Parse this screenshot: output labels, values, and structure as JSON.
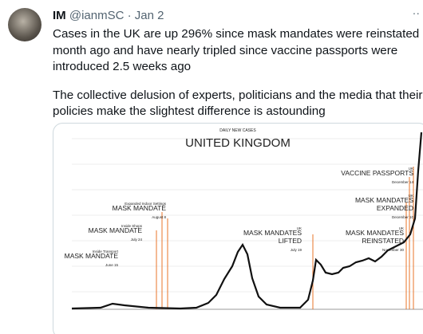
{
  "tweet": {
    "name": "IM",
    "handle": "@ianmSC · Jan 2",
    "more": "··",
    "lines": [
      "Cases in the UK are up 296% since mask mandates were reinstated a",
      "month ago and have nearly tripled since vaccine passports were",
      "introduced 2.5 weeks ago"
    ],
    "lines2": [
      "The collective delusion of experts, politicians and the media that their",
      "policies make the slightest difference is astounding"
    ]
  },
  "image": {
    "subtitle": "DAILY NEW CASES",
    "title": "UNITED KINGDOM",
    "annotations": [
      [
        "Expanded Indoor Settings",
        "MASK MANDATE",
        "August 8"
      ],
      [
        "Inside Shops",
        "MASK MANDATE",
        "July 24"
      ],
      [
        "Inside Transport",
        "MASK MANDATE",
        "June 15"
      ],
      [
        "UK",
        "VACCINE PASSPORTS",
        "December 14"
      ],
      [
        "UK",
        "MASK MANDATES",
        "EXPANDED",
        "December 10"
      ],
      [
        "UK",
        "MASK MANDATES",
        "LIFTED",
        "July 19"
      ],
      [
        "UK",
        "MASK MANDATES",
        "REINSTATED",
        "November 30"
      ]
    ]
  }
}
